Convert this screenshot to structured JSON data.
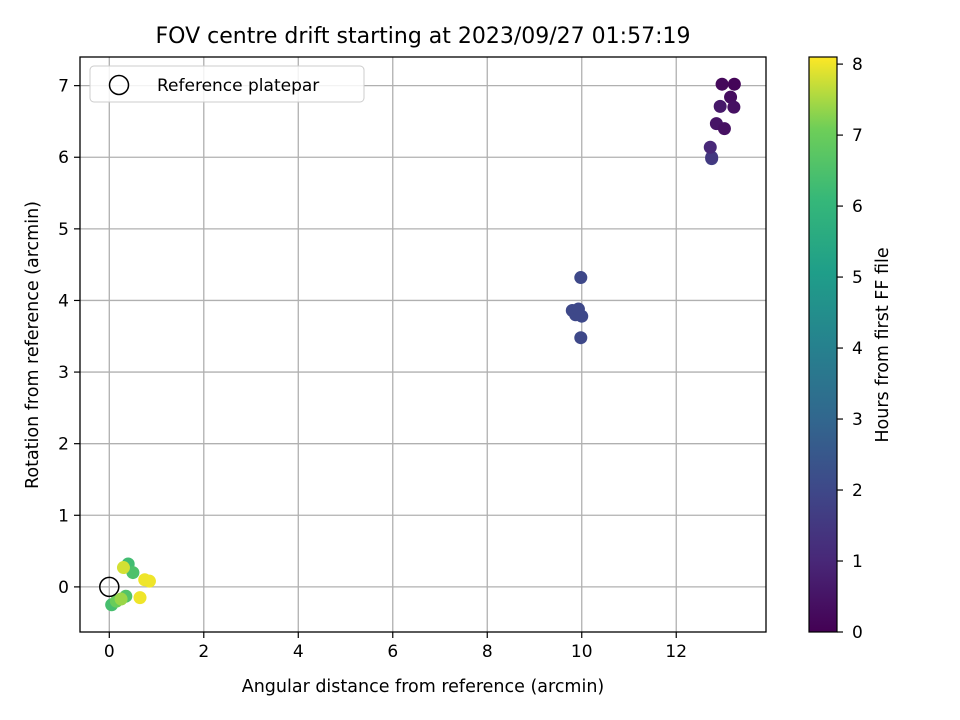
{
  "chart_data": {
    "type": "scatter",
    "title": "FOV centre drift starting at 2023/09/27 01:57:19",
    "xlabel": "Angular distance from reference (arcmin)",
    "ylabel": "Rotation from reference (arcmin)",
    "xlim": [
      -0.62,
      13.9
    ],
    "ylim": [
      -0.63,
      7.4
    ],
    "xticks": [
      0,
      2,
      4,
      6,
      8,
      10,
      12
    ],
    "yticks": [
      0,
      1,
      2,
      3,
      4,
      5,
      6,
      7
    ],
    "grid": true,
    "legend": {
      "position": "top-left",
      "entries": [
        "Reference platepar"
      ]
    },
    "reference": {
      "x": 0,
      "y": 0
    },
    "colorbar": {
      "label": "Hours from first FF file",
      "range": [
        0,
        8.1
      ],
      "ticks": [
        0,
        1,
        2,
        3,
        4,
        5,
        6,
        7,
        8
      ],
      "colormap": "viridis"
    },
    "points": [
      {
        "x": 12.75,
        "y": 5.98,
        "c": 1.7
      },
      {
        "x": 12.75,
        "y": 6.0,
        "c": 1.5
      },
      {
        "x": 12.72,
        "y": 6.14,
        "c": 1.0
      },
      {
        "x": 12.85,
        "y": 6.47,
        "c": 0.5
      },
      {
        "x": 13.02,
        "y": 6.4,
        "c": 0.4
      },
      {
        "x": 12.93,
        "y": 6.71,
        "c": 0.6
      },
      {
        "x": 13.15,
        "y": 6.84,
        "c": 0.3
      },
      {
        "x": 13.22,
        "y": 6.7,
        "c": 0.4
      },
      {
        "x": 12.97,
        "y": 7.02,
        "c": 0.2
      },
      {
        "x": 13.23,
        "y": 7.02,
        "c": 0.1
      },
      {
        "x": 9.98,
        "y": 4.32,
        "c": 2.0
      },
      {
        "x": 9.8,
        "y": 3.86,
        "c": 2.0
      },
      {
        "x": 9.87,
        "y": 3.8,
        "c": 2.0
      },
      {
        "x": 9.93,
        "y": 3.88,
        "c": 2.0
      },
      {
        "x": 10.0,
        "y": 3.78,
        "c": 2.0
      },
      {
        "x": 9.98,
        "y": 3.48,
        "c": 2.0
      },
      {
        "x": 0.4,
        "y": 0.32,
        "c": 6.3
      },
      {
        "x": 0.5,
        "y": 0.2,
        "c": 6.5
      },
      {
        "x": 0.3,
        "y": 0.27,
        "c": 7.8
      },
      {
        "x": 0.75,
        "y": 0.1,
        "c": 8.0
      },
      {
        "x": 0.85,
        "y": 0.08,
        "c": 8.0
      },
      {
        "x": 0.35,
        "y": -0.13,
        "c": 6.6
      },
      {
        "x": 0.05,
        "y": -0.25,
        "c": 6.4
      },
      {
        "x": 0.15,
        "y": -0.2,
        "c": 7.0
      },
      {
        "x": 0.25,
        "y": -0.17,
        "c": 7.4
      },
      {
        "x": 0.65,
        "y": -0.15,
        "c": 8.0
      }
    ]
  }
}
